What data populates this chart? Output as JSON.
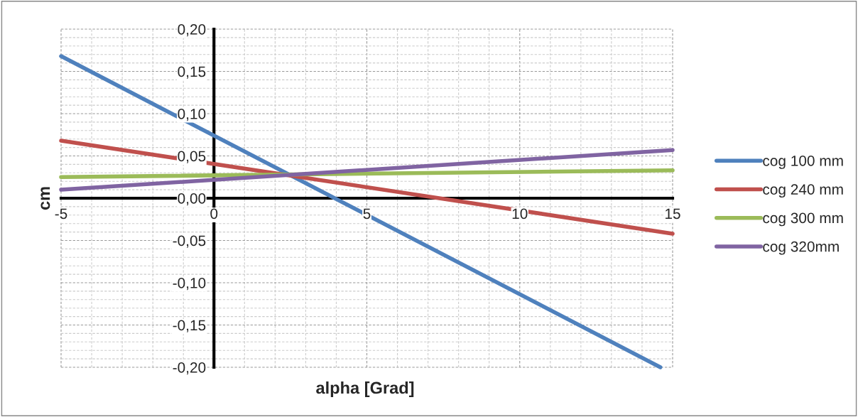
{
  "chart_data": {
    "type": "line",
    "xlabel": "alpha [Grad]",
    "ylabel": "cm",
    "xlim": [
      -5,
      15
    ],
    "ylim": [
      -0.2,
      0.2
    ],
    "xticks": [
      -5,
      0,
      5,
      10,
      15
    ],
    "yticks": [
      {
        "value": -0.2,
        "label": "-0,20"
      },
      {
        "value": -0.15,
        "label": "-0,15"
      },
      {
        "value": -0.1,
        "label": "-0,10"
      },
      {
        "value": -0.05,
        "label": "-0,05"
      },
      {
        "value": 0,
        "label": "0,00"
      },
      {
        "value": 0.05,
        "label": "0,05"
      },
      {
        "value": 0.1,
        "label": "0,10"
      },
      {
        "value": 0.15,
        "label": "0,15"
      },
      {
        "value": 0.2,
        "label": "0,20"
      }
    ],
    "grid": true,
    "legend": "right",
    "marker": "none",
    "line_style": "solid",
    "series": [
      {
        "name": "cog 100 mm",
        "color": "#4f81bd",
        "x": [
          -5,
          14.6
        ],
        "values": [
          0.168,
          -0.2
        ]
      },
      {
        "name": "cog 240 mm",
        "color": "#c0504d",
        "x": [
          -5,
          15
        ],
        "values": [
          0.068,
          -0.042
        ]
      },
      {
        "name": "cog 300 mm",
        "color": "#9bbb59",
        "x": [
          -5,
          15
        ],
        "values": [
          0.025,
          0.033
        ]
      },
      {
        "name": "cog 320mm",
        "color": "#8064a2",
        "x": [
          -5,
          15
        ],
        "values": [
          0.01,
          0.057
        ]
      }
    ]
  }
}
